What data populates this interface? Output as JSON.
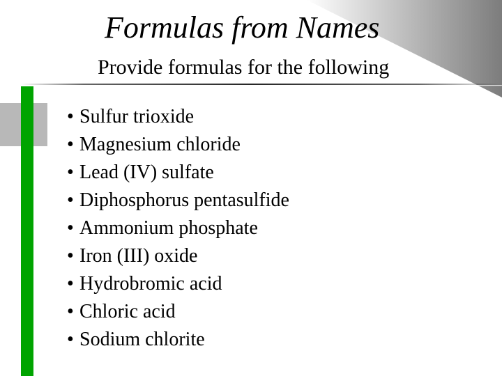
{
  "slide": {
    "title": "Formulas from Names",
    "subtitle": "Provide formulas for the following",
    "title_fontsize": 44,
    "title_fontstyle": "italic",
    "subtitle_fontsize": 30,
    "background_color": "#ffffff",
    "corner_gradient_from": "rgba(180,180,180,0)",
    "corner_gradient_to": "#6e6e6e"
  },
  "sidebar": {
    "green_bar_color": "#00a400",
    "grey_bar_color": "#b8b8b8"
  },
  "bullets": {
    "marker": "•",
    "fontsize": 28,
    "line_height": 40,
    "text_color": "#000000",
    "items": [
      "Sulfur trioxide",
      "Magnesium chloride",
      "Lead (IV) sulfate",
      "Diphosphorus pentasulfide",
      "Ammonium phosphate",
      "Iron (III) oxide",
      "Hydrobromic acid",
      "Chloric acid",
      "Sodium chlorite"
    ]
  }
}
